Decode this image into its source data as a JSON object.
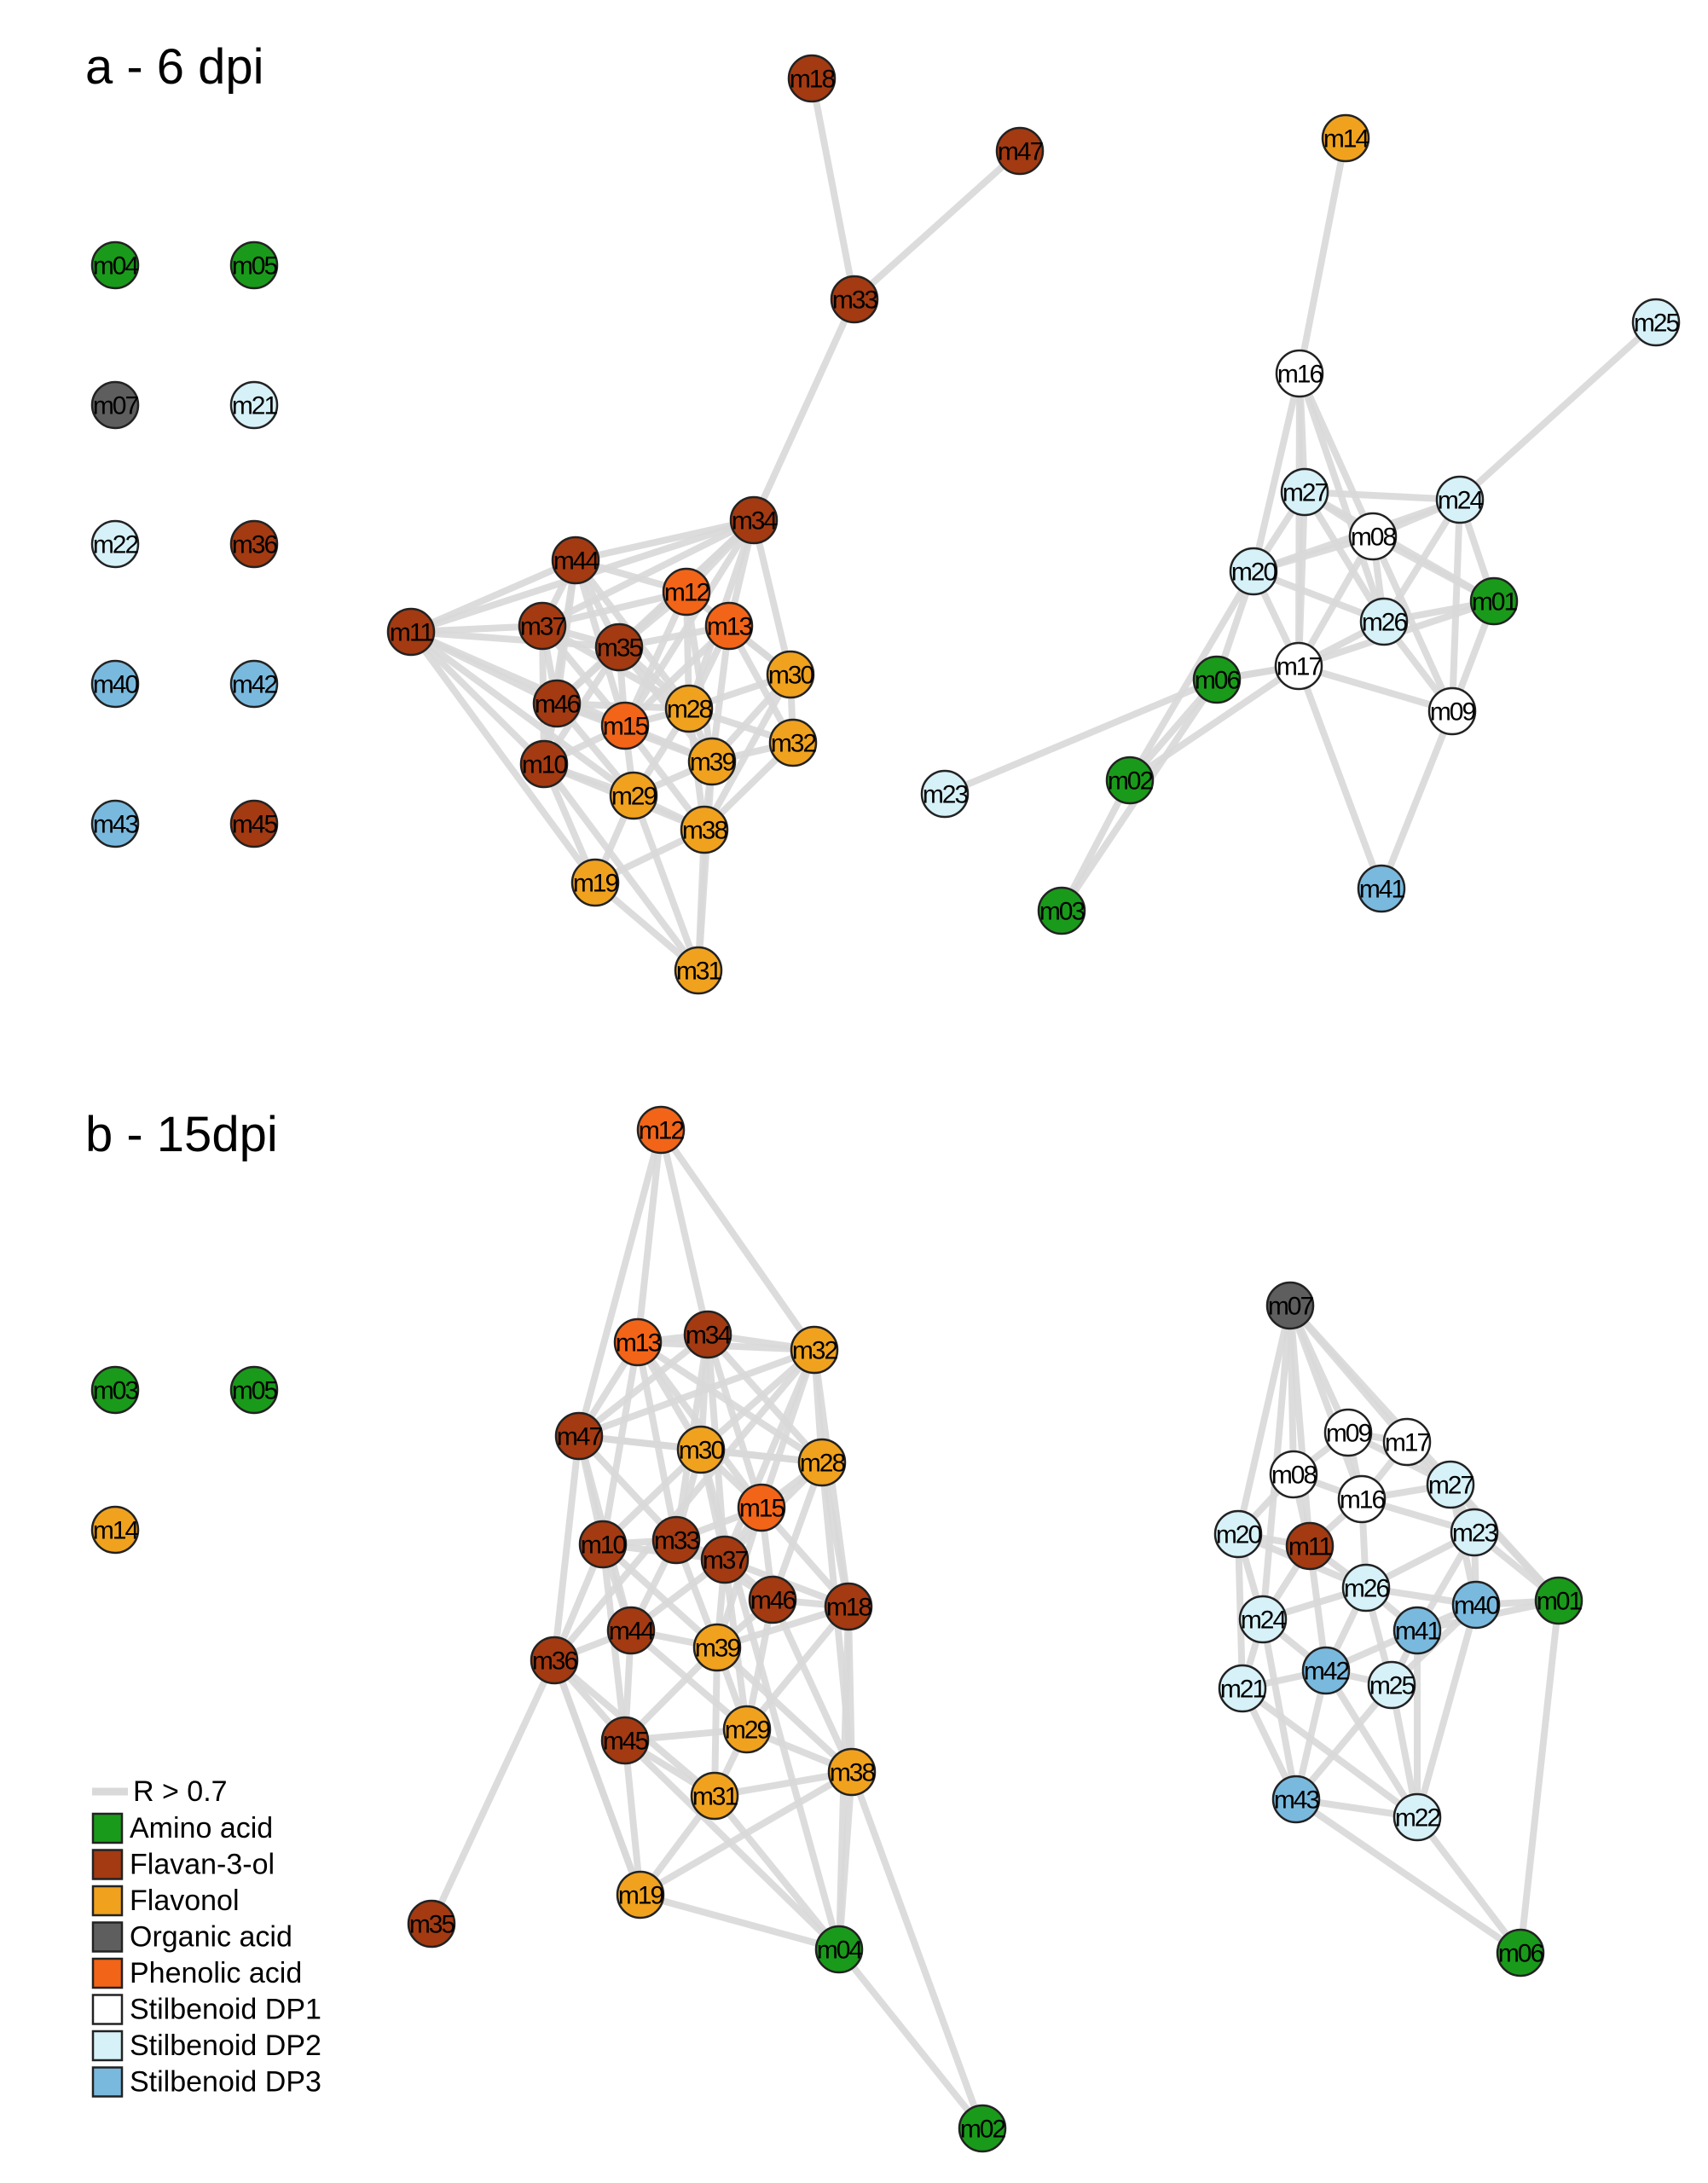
{
  "panels": [
    {
      "title": "a - 6 dpi"
    },
    {
      "title": "b - 15dpi"
    }
  ],
  "legend": {
    "edge_label": "R > 0.7",
    "edge_color": "#d9d9d9",
    "classes": [
      {
        "name": "Amino acid",
        "color": "#1a9a1a"
      },
      {
        "name": "Flavan-3-ol",
        "color": "#a33a12"
      },
      {
        "name": "Flavonol",
        "color": "#f0a21e"
      },
      {
        "name": "Organic acid",
        "color": "#5e5e5e"
      },
      {
        "name": "Phenolic acid",
        "color": "#f26418"
      },
      {
        "name": "Stilbenoid DP1",
        "color": "#ffffff"
      },
      {
        "name": "Stilbenoid DP2",
        "color": "#d6f1f8"
      },
      {
        "name": "Stilbenoid DP3",
        "color": "#7ab9de"
      }
    ]
  },
  "class_of": {
    "m01": "Amino acid",
    "m02": "Amino acid",
    "m03": "Amino acid",
    "m04": "Amino acid",
    "m05": "Amino acid",
    "m06": "Amino acid",
    "m07": "Organic acid",
    "m08": "Stilbenoid DP1",
    "m09": "Stilbenoid DP1",
    "m16": "Stilbenoid DP1",
    "m17": "Stilbenoid DP1",
    "m10": "Flavan-3-ol",
    "m11": "Flavan-3-ol",
    "m18": "Flavan-3-ol",
    "m33": "Flavan-3-ol",
    "m34": "Flavan-3-ol",
    "m35": "Flavan-3-ol",
    "m36": "Flavan-3-ol",
    "m37": "Flavan-3-ol",
    "m44": "Flavan-3-ol",
    "m45": "Flavan-3-ol",
    "m46": "Flavan-3-ol",
    "m47": "Flavan-3-ol",
    "m12": "Phenolic acid",
    "m13": "Phenolic acid",
    "m15": "Phenolic acid",
    "m14": "Flavonol",
    "m19": "Flavonol",
    "m28": "Flavonol",
    "m29": "Flavonol",
    "m30": "Flavonol",
    "m31": "Flavonol",
    "m32": "Flavonol",
    "m38": "Flavonol",
    "m39": "Flavonol",
    "m20": "Stilbenoid DP2",
    "m21": "Stilbenoid DP2",
    "m22": "Stilbenoid DP2",
    "m23": "Stilbenoid DP2",
    "m24": "Stilbenoid DP2",
    "m25": "Stilbenoid DP2",
    "m26": "Stilbenoid DP2",
    "m27": "Stilbenoid DP2",
    "m40": "Stilbenoid DP3",
    "m41": "Stilbenoid DP3",
    "m42": "Stilbenoid DP3",
    "m43": "Stilbenoid DP3"
  },
  "networks": {
    "panel_a": {
      "isolated": [
        "m04",
        "m05",
        "m07",
        "m21",
        "m22",
        "m36",
        "m40",
        "m42",
        "m43",
        "m45"
      ],
      "flavonoid_cluster": [
        "m18",
        "m47",
        "m33",
        "m34",
        "m44",
        "m12",
        "m13",
        "m11",
        "m37",
        "m35",
        "m30",
        "m46",
        "m15",
        "m28",
        "m32",
        "m10",
        "m39",
        "m29",
        "m38",
        "m19",
        "m31"
      ],
      "stilbenoid_cluster": [
        "m14",
        "m25",
        "m16",
        "m27",
        "m24",
        "m08",
        "m20",
        "m01",
        "m26",
        "m17",
        "m06",
        "m09",
        "m23",
        "m02",
        "m03",
        "m41"
      ],
      "edges": [
        [
          "m18",
          "m33"
        ],
        [
          "m47",
          "m33"
        ],
        [
          "m33",
          "m34"
        ],
        [
          "m34",
          "m44"
        ],
        [
          "m34",
          "m12"
        ],
        [
          "m34",
          "m13"
        ],
        [
          "m34",
          "m37"
        ],
        [
          "m34",
          "m35"
        ],
        [
          "m34",
          "m28"
        ],
        [
          "m34",
          "m30"
        ],
        [
          "m34",
          "m15"
        ],
        [
          "m34",
          "m11"
        ],
        [
          "m34",
          "m46"
        ],
        [
          "m44",
          "m11"
        ],
        [
          "m44",
          "m37"
        ],
        [
          "m44",
          "m35"
        ],
        [
          "m44",
          "m12"
        ],
        [
          "m44",
          "m46"
        ],
        [
          "m44",
          "m15"
        ],
        [
          "m44",
          "m28"
        ],
        [
          "m44",
          "m10"
        ],
        [
          "m11",
          "m37"
        ],
        [
          "m11",
          "m35"
        ],
        [
          "m11",
          "m46"
        ],
        [
          "m11",
          "m10"
        ],
        [
          "m11",
          "m19"
        ],
        [
          "m11",
          "m29"
        ],
        [
          "m11",
          "m15"
        ],
        [
          "m37",
          "m35"
        ],
        [
          "m37",
          "m46"
        ],
        [
          "m37",
          "m12"
        ],
        [
          "m37",
          "m15"
        ],
        [
          "m37",
          "m10"
        ],
        [
          "m37",
          "m28"
        ],
        [
          "m35",
          "m12"
        ],
        [
          "m35",
          "m13"
        ],
        [
          "m35",
          "m46"
        ],
        [
          "m35",
          "m15"
        ],
        [
          "m35",
          "m28"
        ],
        [
          "m35",
          "m10"
        ],
        [
          "m35",
          "m39"
        ],
        [
          "m12",
          "m13"
        ],
        [
          "m12",
          "m28"
        ],
        [
          "m12",
          "m15"
        ],
        [
          "m12",
          "m30"
        ],
        [
          "m12",
          "m39"
        ],
        [
          "m13",
          "m30"
        ],
        [
          "m13",
          "m28"
        ],
        [
          "m13",
          "m32"
        ],
        [
          "m13",
          "m39"
        ],
        [
          "m13",
          "m15"
        ],
        [
          "m30",
          "m32"
        ],
        [
          "m30",
          "m28"
        ],
        [
          "m30",
          "m39"
        ],
        [
          "m30",
          "m38"
        ],
        [
          "m46",
          "m15"
        ],
        [
          "m46",
          "m10"
        ],
        [
          "m46",
          "m29"
        ],
        [
          "m46",
          "m28"
        ],
        [
          "m46",
          "m39"
        ],
        [
          "m15",
          "m28"
        ],
        [
          "m15",
          "m29"
        ],
        [
          "m15",
          "m39"
        ],
        [
          "m15",
          "m10"
        ],
        [
          "m15",
          "m38"
        ],
        [
          "m28",
          "m39"
        ],
        [
          "m28",
          "m32"
        ],
        [
          "m28",
          "m29"
        ],
        [
          "m28",
          "m38"
        ],
        [
          "m32",
          "m39"
        ],
        [
          "m32",
          "m38"
        ],
        [
          "m10",
          "m29"
        ],
        [
          "m10",
          "m19"
        ],
        [
          "m10",
          "m38"
        ],
        [
          "m39",
          "m29"
        ],
        [
          "m39",
          "m38"
        ],
        [
          "m39",
          "m31"
        ],
        [
          "m29",
          "m38"
        ],
        [
          "m29",
          "m19"
        ],
        [
          "m29",
          "m31"
        ],
        [
          "m38",
          "m19"
        ],
        [
          "m38",
          "m31"
        ],
        [
          "m19",
          "m31"
        ],
        [
          "m10",
          "m31"
        ],
        [
          "m14",
          "m16"
        ],
        [
          "m25",
          "m24"
        ],
        [
          "m16",
          "m27"
        ],
        [
          "m16",
          "m20"
        ],
        [
          "m16",
          "m08"
        ],
        [
          "m16",
          "m17"
        ],
        [
          "m16",
          "m26"
        ],
        [
          "m27",
          "m24"
        ],
        [
          "m27",
          "m08"
        ],
        [
          "m27",
          "m20"
        ],
        [
          "m27",
          "m26"
        ],
        [
          "m27",
          "m17"
        ],
        [
          "m27",
          "m01"
        ],
        [
          "m24",
          "m08"
        ],
        [
          "m24",
          "m01"
        ],
        [
          "m24",
          "m26"
        ],
        [
          "m24",
          "m09"
        ],
        [
          "m24",
          "m20"
        ],
        [
          "m08",
          "m20"
        ],
        [
          "m08",
          "m26"
        ],
        [
          "m08",
          "m01"
        ],
        [
          "m08",
          "m17"
        ],
        [
          "m08",
          "m09"
        ],
        [
          "m20",
          "m26"
        ],
        [
          "m20",
          "m17"
        ],
        [
          "m20",
          "m06"
        ],
        [
          "m20",
          "m02"
        ],
        [
          "m26",
          "m17"
        ],
        [
          "m26",
          "m01"
        ],
        [
          "m26",
          "m09"
        ],
        [
          "m17",
          "m06"
        ],
        [
          "m17",
          "m09"
        ],
        [
          "m17",
          "m41"
        ],
        [
          "m17",
          "m02"
        ],
        [
          "m17",
          "m01"
        ],
        [
          "m09",
          "m41"
        ],
        [
          "m09",
          "m01"
        ],
        [
          "m06",
          "m23"
        ],
        [
          "m06",
          "m02"
        ],
        [
          "m06",
          "m03"
        ],
        [
          "m02",
          "m03"
        ],
        [
          "m06",
          "m17"
        ]
      ]
    },
    "panel_b": {
      "isolated": [
        "m03",
        "m05",
        "m14"
      ],
      "flavonoid_cluster": [
        "m12",
        "m13",
        "m34",
        "m32",
        "m47",
        "m30",
        "m28",
        "m15",
        "m10",
        "m33",
        "m37",
        "m46",
        "m18",
        "m44",
        "m39",
        "m36",
        "m29",
        "m45",
        "m38",
        "m31",
        "m19",
        "m35",
        "m04",
        "m02"
      ],
      "stilbenoid_cluster": [
        "m07",
        "m09",
        "m17",
        "m08",
        "m16",
        "m27",
        "m20",
        "m11",
        "m23",
        "m26",
        "m40",
        "m01",
        "m24",
        "m41",
        "m42",
        "m21",
        "m25",
        "m43",
        "m22",
        "m06"
      ],
      "edges": [
        [
          "m12",
          "m13"
        ],
        [
          "m12",
          "m34"
        ],
        [
          "m12",
          "m32"
        ],
        [
          "m12",
          "m47"
        ],
        [
          "m13",
          "m34"
        ],
        [
          "m13",
          "m32"
        ],
        [
          "m13",
          "m47"
        ],
        [
          "m13",
          "m30"
        ],
        [
          "m13",
          "m28"
        ],
        [
          "m13",
          "m10"
        ],
        [
          "m13",
          "m33"
        ],
        [
          "m13",
          "m15"
        ],
        [
          "m34",
          "m32"
        ],
        [
          "m34",
          "m47"
        ],
        [
          "m34",
          "m30"
        ],
        [
          "m34",
          "m28"
        ],
        [
          "m34",
          "m15"
        ],
        [
          "m34",
          "m33"
        ],
        [
          "m34",
          "m37"
        ],
        [
          "m32",
          "m30"
        ],
        [
          "m32",
          "m28"
        ],
        [
          "m32",
          "m15"
        ],
        [
          "m32",
          "m18"
        ],
        [
          "m32",
          "m47"
        ],
        [
          "m32",
          "m37"
        ],
        [
          "m32",
          "m36"
        ],
        [
          "m47",
          "m30"
        ],
        [
          "m47",
          "m10"
        ],
        [
          "m47",
          "m33"
        ],
        [
          "m47",
          "m44"
        ],
        [
          "m47",
          "m36"
        ],
        [
          "m47",
          "m28"
        ],
        [
          "m30",
          "m28"
        ],
        [
          "m30",
          "m15"
        ],
        [
          "m30",
          "m10"
        ],
        [
          "m30",
          "m33"
        ],
        [
          "m30",
          "m37"
        ],
        [
          "m28",
          "m15"
        ],
        [
          "m28",
          "m37"
        ],
        [
          "m28",
          "m46"
        ],
        [
          "m28",
          "m18"
        ],
        [
          "m28",
          "m38"
        ],
        [
          "m15",
          "m33"
        ],
        [
          "m15",
          "m37"
        ],
        [
          "m15",
          "m46"
        ],
        [
          "m15",
          "m18"
        ],
        [
          "m15",
          "m39"
        ],
        [
          "m10",
          "m33"
        ],
        [
          "m10",
          "m44"
        ],
        [
          "m10",
          "m36"
        ],
        [
          "m10",
          "m37"
        ],
        [
          "m10",
          "m39"
        ],
        [
          "m10",
          "m45"
        ],
        [
          "m33",
          "m37"
        ],
        [
          "m33",
          "m44"
        ],
        [
          "m33",
          "m39"
        ],
        [
          "m33",
          "m46"
        ],
        [
          "m37",
          "m46"
        ],
        [
          "m37",
          "m39"
        ],
        [
          "m37",
          "m44"
        ],
        [
          "m37",
          "m18"
        ],
        [
          "m37",
          "m29"
        ],
        [
          "m46",
          "m18"
        ],
        [
          "m46",
          "m39"
        ],
        [
          "m46",
          "m29"
        ],
        [
          "m46",
          "m38"
        ],
        [
          "m18",
          "m38"
        ],
        [
          "m18",
          "m29"
        ],
        [
          "m18",
          "m39"
        ],
        [
          "m18",
          "m04"
        ],
        [
          "m44",
          "m39"
        ],
        [
          "m44",
          "m36"
        ],
        [
          "m44",
          "m45"
        ],
        [
          "m44",
          "m29"
        ],
        [
          "m39",
          "m29"
        ],
        [
          "m39",
          "m31"
        ],
        [
          "m39",
          "m45"
        ],
        [
          "m39",
          "m38"
        ],
        [
          "m36",
          "m45"
        ],
        [
          "m36",
          "m19"
        ],
        [
          "m36",
          "m35"
        ],
        [
          "m36",
          "m31"
        ],
        [
          "m29",
          "m38"
        ],
        [
          "m29",
          "m31"
        ],
        [
          "m29",
          "m45"
        ],
        [
          "m45",
          "m31"
        ],
        [
          "m45",
          "m19"
        ],
        [
          "m38",
          "m31"
        ],
        [
          "m38",
          "m04"
        ],
        [
          "m38",
          "m02"
        ],
        [
          "m38",
          "m19"
        ],
        [
          "m31",
          "m19"
        ],
        [
          "m31",
          "m04"
        ],
        [
          "m19",
          "m04"
        ],
        [
          "m04",
          "m02"
        ],
        [
          "m45",
          "m04"
        ],
        [
          "m19",
          "m36"
        ],
        [
          "m30",
          "m04"
        ],
        [
          "m07",
          "m09"
        ],
        [
          "m07",
          "m08"
        ],
        [
          "m07",
          "m20"
        ],
        [
          "m07",
          "m16"
        ],
        [
          "m07",
          "m01"
        ],
        [
          "m07",
          "m17"
        ],
        [
          "m07",
          "m11"
        ],
        [
          "m07",
          "m24"
        ],
        [
          "m09",
          "m17"
        ],
        [
          "m09",
          "m08"
        ],
        [
          "m09",
          "m16"
        ],
        [
          "m09",
          "m27"
        ],
        [
          "m17",
          "m27"
        ],
        [
          "m17",
          "m16"
        ],
        [
          "m17",
          "m23"
        ],
        [
          "m08",
          "m16"
        ],
        [
          "m08",
          "m20"
        ],
        [
          "m08",
          "m11"
        ],
        [
          "m16",
          "m27"
        ],
        [
          "m16",
          "m11"
        ],
        [
          "m16",
          "m26"
        ],
        [
          "m16",
          "m23"
        ],
        [
          "m27",
          "m23"
        ],
        [
          "m27",
          "m40"
        ],
        [
          "m27",
          "m01"
        ],
        [
          "m20",
          "m11"
        ],
        [
          "m20",
          "m24"
        ],
        [
          "m20",
          "m26"
        ],
        [
          "m20",
          "m21"
        ],
        [
          "m11",
          "m26"
        ],
        [
          "m11",
          "m24"
        ],
        [
          "m11",
          "m42"
        ],
        [
          "m23",
          "m40"
        ],
        [
          "m23",
          "m26"
        ],
        [
          "m23",
          "m01"
        ],
        [
          "m23",
          "m41"
        ],
        [
          "m26",
          "m40"
        ],
        [
          "m26",
          "m41"
        ],
        [
          "m26",
          "m24"
        ],
        [
          "m26",
          "m42"
        ],
        [
          "m26",
          "m25"
        ],
        [
          "m40",
          "m01"
        ],
        [
          "m40",
          "m41"
        ],
        [
          "m40",
          "m25"
        ],
        [
          "m41",
          "m01"
        ],
        [
          "m24",
          "m21"
        ],
        [
          "m24",
          "m42"
        ],
        [
          "m24",
          "m43"
        ],
        [
          "m41",
          "m42"
        ],
        [
          "m41",
          "m25"
        ],
        [
          "m41",
          "m22"
        ],
        [
          "m42",
          "m21"
        ],
        [
          "m42",
          "m25"
        ],
        [
          "m42",
          "m43"
        ],
        [
          "m42",
          "m22"
        ],
        [
          "m21",
          "m43"
        ],
        [
          "m25",
          "m43"
        ],
        [
          "m25",
          "m22"
        ],
        [
          "m43",
          "m22"
        ],
        [
          "m01",
          "m06"
        ],
        [
          "m43",
          "m06"
        ],
        [
          "m22",
          "m06"
        ],
        [
          "m21",
          "m22"
        ],
        [
          "m40",
          "m22"
        ]
      ]
    }
  }
}
